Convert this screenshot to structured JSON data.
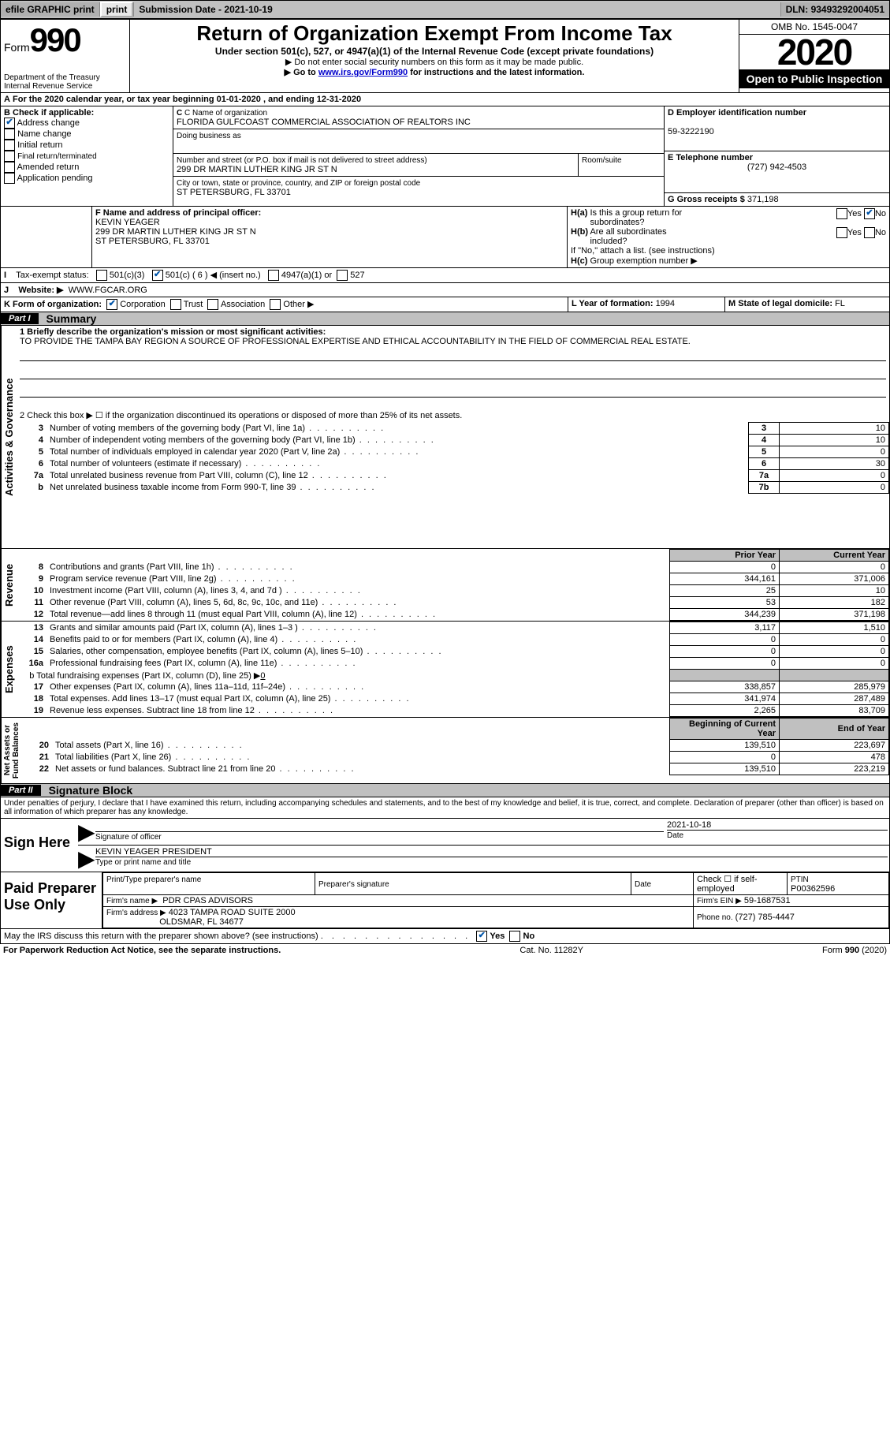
{
  "topbar": {
    "efile": "efile GRAPHIC print",
    "submission_label": "Submission Date - ",
    "submission_date": "2021-10-19",
    "dln_label": "DLN: ",
    "dln": "93493292004051"
  },
  "header": {
    "form_word": "Form",
    "form_number": "990",
    "dept": "Department of the Treasury\nInternal Revenue Service",
    "title": "Return of Organization Exempt From Income Tax",
    "subtitle": "Under section 501(c), 527, or 4947(a)(1) of the Internal Revenue Code (except private foundations)",
    "note1": "▶ Do not enter social security numbers on this form as it may be made public.",
    "note2_prefix": "▶ Go to ",
    "note2_link": "www.irs.gov/Form990",
    "note2_suffix": " for instructions and the latest information.",
    "omb": "OMB No. 1545-0047",
    "year": "2020",
    "inspection": "Open to Public Inspection"
  },
  "line_a": {
    "prefix": "A",
    "text": "For the 2020 calendar year, or tax year beginning ",
    "begin": "01-01-2020",
    "mid": " , and ending ",
    "end": "12-31-2020"
  },
  "section_b": {
    "header": "B Check if applicable:",
    "items": [
      {
        "label": "Address change",
        "checked": true
      },
      {
        "label": "Name change",
        "checked": false
      },
      {
        "label": "Initial return",
        "checked": false
      },
      {
        "label": "Final return/terminated",
        "checked": false
      },
      {
        "label": "Amended return",
        "checked": false
      },
      {
        "label": "Application pending",
        "checked": false
      }
    ]
  },
  "section_c": {
    "name_label": "C Name of organization",
    "name": "FLORIDA GULFCOAST COMMERCIAL ASSOCIATION OF REALTORS INC",
    "dba_label": "Doing business as",
    "street_label": "Number and street (or P.O. box if mail is not delivered to street address)",
    "street": "299 DR MARTIN LUTHER KING JR ST N",
    "room_label": "Room/suite",
    "city_label": "City or town, state or province, country, and ZIP or foreign postal code",
    "city": "ST PETERSBURG, FL  33701"
  },
  "section_d": {
    "label": "D Employer identification number",
    "value": "59-3222190"
  },
  "section_e": {
    "label": "E Telephone number",
    "value": "(727) 942-4503"
  },
  "section_g": {
    "label": "G Gross receipts $",
    "value": "371,198"
  },
  "section_f": {
    "label": "F  Name and address of principal officer:",
    "name": "KEVIN YEAGER",
    "street": "299 DR MARTIN LUTHER KING JR ST N",
    "city": "ST PETERSBURG, FL  33701"
  },
  "section_h": {
    "ha_label": "H(a)  Is this a group return for subordinates?",
    "ha_no_checked": true,
    "hb_label": "H(b)  Are all subordinates included?",
    "hb_note": "If \"No,\" attach a list. (see instructions)",
    "hc_label": "H(c)  Group exemption number ▶"
  },
  "line_i": {
    "label": "I     Tax-exempt status:",
    "opt1": "501(c)(3)",
    "opt2_pre": "501(c) (",
    "opt2_num": "6",
    "opt2_post": ") ◀ (insert no.)",
    "opt3": "4947(a)(1) or",
    "opt4": "527",
    "checked_index": 1
  },
  "line_j": {
    "label": "J     Website: ▶ ",
    "value": "WWW.FGCAR.ORG"
  },
  "line_k": {
    "label": "K Form of organization:",
    "opts": [
      "Corporation",
      "Trust",
      "Association",
      "Other ▶"
    ],
    "checked_index": 0
  },
  "line_l": {
    "label": "L Year of formation: ",
    "value": "1994"
  },
  "line_m": {
    "label": "M State of legal domicile: ",
    "value": "FL"
  },
  "part1": {
    "header": "Part I",
    "title": "Summary",
    "mission_label": "1  Briefly describe the organization's mission or most significant activities:",
    "mission": "TO PROVIDE THE TAMPA BAY REGION A SOURCE OF PROFESSIONAL EXPERTISE AND ETHICAL ACCOUNTABILITY IN THE FIELD OF COMMERCIAL REAL ESTATE.",
    "line2": "2    Check this box ▶ ☐  if the organization discontinued its operations or disposed of more than 25% of its net assets.",
    "governance_rows": [
      {
        "num": "3",
        "text": "Number of voting members of the governing body (Part VI, line 1a)",
        "box": "3",
        "val": "10"
      },
      {
        "num": "4",
        "text": "Number of independent voting members of the governing body (Part VI, line 1b)",
        "box": "4",
        "val": "10"
      },
      {
        "num": "5",
        "text": "Total number of individuals employed in calendar year 2020 (Part V, line 2a)",
        "box": "5",
        "val": "0"
      },
      {
        "num": "6",
        "text": "Total number of volunteers (estimate if necessary)",
        "box": "6",
        "val": "30"
      },
      {
        "num": "7a",
        "text": "Total unrelated business revenue from Part VIII, column (C), line 12",
        "box": "7a",
        "val": "0"
      },
      {
        "num": "b",
        "text": "Net unrelated business taxable income from Form 990-T, line 39",
        "box": "7b",
        "val": "0"
      }
    ],
    "col_prior": "Prior Year",
    "col_current": "Current Year",
    "revenue_rows": [
      {
        "num": "8",
        "text": "Contributions and grants (Part VIII, line 1h)",
        "prior": "0",
        "curr": "0"
      },
      {
        "num": "9",
        "text": "Program service revenue (Part VIII, line 2g)",
        "prior": "344,161",
        "curr": "371,006"
      },
      {
        "num": "10",
        "text": "Investment income (Part VIII, column (A), lines 3, 4, and 7d )",
        "prior": "25",
        "curr": "10"
      },
      {
        "num": "11",
        "text": "Other revenue (Part VIII, column (A), lines 5, 6d, 8c, 9c, 10c, and 11e)",
        "prior": "53",
        "curr": "182"
      },
      {
        "num": "12",
        "text": "Total revenue—add lines 8 through 11 (must equal Part VIII, column (A), line 12)",
        "prior": "344,239",
        "curr": "371,198"
      }
    ],
    "expense_rows": [
      {
        "num": "13",
        "text": "Grants and similar amounts paid (Part IX, column (A), lines 1–3 )",
        "prior": "3,117",
        "curr": "1,510"
      },
      {
        "num": "14",
        "text": "Benefits paid to or for members (Part IX, column (A), line 4)",
        "prior": "0",
        "curr": "0"
      },
      {
        "num": "15",
        "text": "Salaries, other compensation, employee benefits (Part IX, column (A), lines 5–10)",
        "prior": "0",
        "curr": "0"
      },
      {
        "num": "16a",
        "text": "Professional fundraising fees (Part IX, column (A), line 11e)",
        "prior": "0",
        "curr": "0"
      }
    ],
    "line16b": "b   Total fundraising expenses (Part IX, column (D), line 25) ▶",
    "line16b_val": "0",
    "expense_rows2": [
      {
        "num": "17",
        "text": "Other expenses (Part IX, column (A), lines 11a–11d, 11f–24e)",
        "prior": "338,857",
        "curr": "285,979"
      },
      {
        "num": "18",
        "text": "Total expenses. Add lines 13–17 (must equal Part IX, column (A), line 25)",
        "prior": "341,974",
        "curr": "287,489"
      },
      {
        "num": "19",
        "text": "Revenue less expenses. Subtract line 18 from line 12",
        "prior": "2,265",
        "curr": "83,709"
      }
    ],
    "col_begin": "Beginning of Current Year",
    "col_end": "End of Year",
    "net_rows": [
      {
        "num": "20",
        "text": "Total assets (Part X, line 16)",
        "prior": "139,510",
        "curr": "223,697"
      },
      {
        "num": "21",
        "text": "Total liabilities (Part X, line 26)",
        "prior": "0",
        "curr": "478"
      },
      {
        "num": "22",
        "text": "Net assets or fund balances. Subtract line 21 from line 20",
        "prior": "139,510",
        "curr": "223,219"
      }
    ]
  },
  "part2": {
    "header": "Part II",
    "title": "Signature Block",
    "declaration": "Under penalties of perjury, I declare that I have examined this return, including accompanying schedules and statements, and to the best of my knowledge and belief, it is true, correct, and complete. Declaration of preparer (other than officer) is based on all information of which preparer has any knowledge.",
    "sign_here": "Sign Here",
    "sig_officer": "Signature of officer",
    "sig_date_label": "Date",
    "sig_date": "2021-10-18",
    "officer_name": "KEVIN YEAGER  PRESIDENT",
    "type_name": "Type or print name and title",
    "paid_prep": "Paid Preparer Use Only",
    "prep_name_label": "Print/Type preparer's name",
    "prep_sig_label": "Preparer's signature",
    "date_label": "Date",
    "check_self": "Check ☐ if self-employed",
    "ptin_label": "PTIN",
    "ptin": "P00362596",
    "firm_name_label": "Firm's name    ▶",
    "firm_name": "PDR CPAS ADVISORS",
    "firm_ein_label": "Firm's EIN ▶",
    "firm_ein": "59-1687531",
    "firm_addr_label": "Firm's address ▶",
    "firm_addr1": "4023 TAMPA ROAD SUITE 2000",
    "firm_addr2": "OLDSMAR, FL  34677",
    "phone_label": "Phone no.",
    "phone": "(727) 785-4447",
    "discuss": "May the IRS discuss this return with the preparer shown above? (see instructions)",
    "discuss_yes_checked": true
  },
  "footer": {
    "left": "For Paperwork Reduction Act Notice, see the separate instructions.",
    "mid": "Cat. No. 11282Y",
    "right": "Form 990 (2020)"
  },
  "labels": {
    "yes": "Yes",
    "no": "No"
  }
}
